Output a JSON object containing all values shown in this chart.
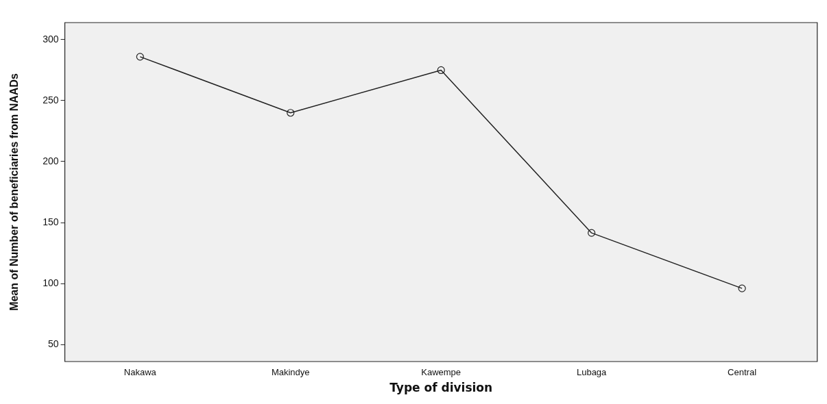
{
  "chart_data": {
    "type": "line",
    "xlabel": "Type of division",
    "ylabel": "Mean of Number of beneficiaries from NAADs",
    "categories": [
      "Nakawa",
      "Makindye",
      "Kawempe",
      "Lubaga",
      "Central"
    ],
    "series": [
      {
        "color": "#222222",
        "values": [
          286,
          240,
          275,
          141.5,
          96
        ]
      }
    ],
    "ylim": [
      36,
      314
    ],
    "yticks": [
      50,
      100,
      150,
      200,
      250,
      300
    ],
    "grid": false,
    "legend": false,
    "marker": "circle",
    "line_style": "solid"
  }
}
